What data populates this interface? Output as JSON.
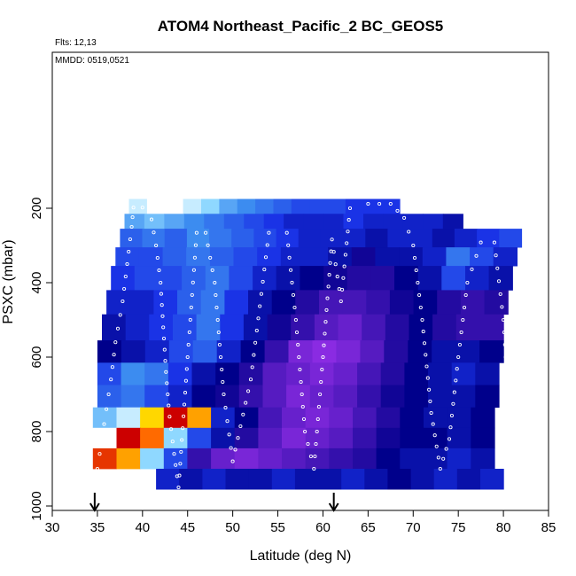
{
  "chart_data": {
    "type": "heatmap",
    "title": "ATOM4 Northeast_Pacific_2 BC_GEOS5",
    "annotations": {
      "flights": "Flts: 12,13",
      "dates": "MMDD: 0519,0521"
    },
    "xlabel": "Latitude (deg N)",
    "ylabel": "PSXC (mbar)",
    "xlim": [
      30,
      85
    ],
    "ylim": [
      1000,
      0
    ],
    "xticks": [
      30,
      35,
      40,
      45,
      50,
      55,
      60,
      65,
      70,
      75,
      80,
      85
    ],
    "yticks": [
      200,
      400,
      600,
      800,
      1000
    ],
    "yaxis_reversed": true,
    "grid": false,
    "colorscale": [
      "#00008b",
      "#1a33e6",
      "#3c8cf0",
      "#8fd8ff",
      "#ffffff",
      "#ffd700",
      "#ff6a00",
      "#cc0000",
      "#8a2be2"
    ],
    "arrows_at_latitude": [
      34.7,
      61.2
    ],
    "layers": [
      {
        "p_top": 175,
        "p_bot": 215,
        "lat_start": 38.5,
        "lat_end": 68.5,
        "values": [
          0.55,
          0.6,
          0.6,
          0.55,
          0.5,
          0.4,
          0.35,
          0.3,
          0.25,
          0.2,
          0.2,
          0.2,
          0.15,
          0.15,
          0.15
        ]
      },
      {
        "p_top": 215,
        "p_bot": 255,
        "lat_start": 38.0,
        "lat_end": 75.5,
        "values": [
          0.4,
          0.45,
          0.4,
          0.35,
          0.3,
          0.25,
          0.2,
          0.15,
          0.1,
          0.1,
          0.1,
          0.15,
          0.1,
          0.1,
          0.1,
          0.1,
          0.05
        ]
      },
      {
        "p_top": 255,
        "p_bot": 305,
        "lat_start": 37.5,
        "lat_end": 82.0,
        "values": [
          0.25,
          0.3,
          0.25,
          0.35,
          0.3,
          0.25,
          0.2,
          0.15,
          0.1,
          0.1,
          0.1,
          0.05,
          0.1,
          0.1,
          0.05,
          0.1,
          0.15,
          0.2
        ]
      },
      {
        "p_top": 305,
        "p_bot": 355,
        "lat_start": 37.0,
        "lat_end": 81.5,
        "values": [
          0.2,
          0.2,
          0.25,
          0.3,
          0.25,
          0.2,
          0.15,
          0.1,
          0.1,
          0.05,
          -0.05,
          0.05,
          0.05,
          0.1,
          0.3,
          0.2,
          0.1
        ]
      },
      {
        "p_top": 355,
        "p_bot": 420,
        "lat_start": 36.5,
        "lat_end": 81.0,
        "values": [
          0.15,
          0.2,
          0.2,
          0.25,
          0.3,
          0.2,
          0.1,
          0.05,
          0.0,
          -0.05,
          -0.1,
          -0.1,
          0.0,
          0.05,
          0.2,
          0.1,
          0.05
        ]
      },
      {
        "p_top": 420,
        "p_bot": 485,
        "lat_start": 36.0,
        "lat_end": 80.5,
        "values": [
          0.1,
          0.1,
          0.15,
          0.25,
          0.3,
          0.15,
          0.05,
          0.0,
          -0.1,
          -0.2,
          -0.2,
          -0.15,
          -0.05,
          0.0,
          -0.1,
          -0.15,
          -0.1
        ]
      },
      {
        "p_top": 485,
        "p_bot": 555,
        "lat_start": 35.5,
        "lat_end": 80.0,
        "values": [
          0.05,
          0.1,
          0.15,
          0.2,
          0.3,
          0.15,
          0.05,
          -0.05,
          -0.15,
          -0.25,
          -0.3,
          -0.2,
          -0.1,
          0.0,
          -0.1,
          -0.15,
          -0.15
        ]
      },
      {
        "p_top": 555,
        "p_bot": 615,
        "lat_start": 35.0,
        "lat_end": 80.0,
        "values": [
          0.0,
          0.05,
          0.1,
          0.2,
          0.25,
          0.1,
          0.0,
          -0.15,
          -0.35,
          -0.4,
          -0.35,
          -0.25,
          -0.1,
          0.0,
          0.05,
          0.05,
          0.0
        ]
      },
      {
        "p_top": 615,
        "p_bot": 675,
        "lat_start": 35.0,
        "lat_end": 79.5,
        "values": [
          0.2,
          0.35,
          0.3,
          0.15,
          0.05,
          0.0,
          -0.1,
          -0.25,
          -0.3,
          -0.35,
          -0.3,
          -0.2,
          -0.1,
          0.0,
          0.05,
          0.1,
          0.05
        ]
      },
      {
        "p_top": 675,
        "p_bot": 735,
        "lat_start": 35.0,
        "lat_end": 79.5,
        "values": [
          0.25,
          0.3,
          0.2,
          0.1,
          0.0,
          -0.05,
          -0.15,
          -0.25,
          -0.35,
          -0.3,
          -0.25,
          -0.15,
          -0.05,
          0.0,
          0.05,
          0.05,
          0.0
        ]
      },
      {
        "p_top": 735,
        "p_bot": 790,
        "lat_start": 34.5,
        "lat_end": 79.0,
        "values": [
          0.45,
          0.55,
          0.7,
          0.9,
          0.75,
          0.1,
          0.0,
          -0.2,
          -0.3,
          -0.35,
          -0.3,
          -0.2,
          -0.1,
          0.0,
          0.05,
          0.05,
          0.0
        ]
      },
      {
        "p_top": 790,
        "p_bot": 845,
        "lat_start": 34.5,
        "lat_end": 79.0,
        "values": [
          0.6,
          0.95,
          0.8,
          0.5,
          0.2,
          0.05,
          -0.1,
          -0.25,
          -0.35,
          -0.3,
          -0.25,
          -0.15,
          -0.05,
          0.0,
          0.0,
          0.05,
          0.0
        ]
      },
      {
        "p_top": 845,
        "p_bot": 900,
        "lat_start": 34.5,
        "lat_end": 79.0,
        "values": [
          0.85,
          0.75,
          0.5,
          0.2,
          -0.15,
          -0.3,
          -0.35,
          -0.3,
          -0.25,
          -0.2,
          -0.15,
          -0.1,
          0.0,
          0.05,
          0.05,
          0.1,
          0.05
        ]
      },
      {
        "p_top": 900,
        "p_bot": 955,
        "lat_start": 41.5,
        "lat_end": 80.0,
        "values": [
          0.1,
          0.05,
          0.1,
          0.05,
          0.05,
          0.1,
          0.05,
          0.05,
          0.1,
          0.05,
          0.0,
          0.05,
          0.1,
          0.05,
          0.1
        ]
      }
    ],
    "flight_track": [
      {
        "lat": 34.7,
        "p": 990
      },
      {
        "lat": 35.0,
        "p": 900
      },
      {
        "lat": 35.5,
        "p": 820
      },
      {
        "lat": 36.0,
        "p": 740
      },
      {
        "lat": 36.5,
        "p": 660
      },
      {
        "lat": 37.0,
        "p": 560
      },
      {
        "lat": 37.8,
        "p": 450
      },
      {
        "lat": 38.3,
        "p": 350
      },
      {
        "lat": 38.8,
        "p": 250
      },
      {
        "lat": 39.0,
        "p": 198
      },
      {
        "lat": 40.0,
        "p": 198
      },
      {
        "lat": 41.0,
        "p": 230
      },
      {
        "lat": 41.5,
        "p": 300
      },
      {
        "lat": 42.0,
        "p": 400
      },
      {
        "lat": 42.3,
        "p": 520
      },
      {
        "lat": 42.6,
        "p": 640
      },
      {
        "lat": 43.0,
        "p": 760
      },
      {
        "lat": 43.5,
        "p": 860
      },
      {
        "lat": 44.0,
        "p": 950
      },
      {
        "lat": 45.0,
        "p": 600
      },
      {
        "lat": 46.0,
        "p": 266
      },
      {
        "lat": 47.0,
        "p": 266
      },
      {
        "lat": 48.0,
        "p": 400
      },
      {
        "lat": 49.0,
        "p": 700
      },
      {
        "lat": 50.0,
        "p": 880
      },
      {
        "lat": 52.0,
        "p": 660
      },
      {
        "lat": 54.0,
        "p": 266
      },
      {
        "lat": 56.0,
        "p": 266
      },
      {
        "lat": 57.0,
        "p": 500
      },
      {
        "lat": 58.0,
        "p": 800
      },
      {
        "lat": 59.0,
        "p": 900
      },
      {
        "lat": 60.0,
        "p": 600
      },
      {
        "lat": 61.0,
        "p": 284
      },
      {
        "lat": 62.0,
        "p": 450
      },
      {
        "lat": 63.0,
        "p": 200
      },
      {
        "lat": 65.0,
        "p": 188
      },
      {
        "lat": 67.5,
        "p": 188
      },
      {
        "lat": 69.0,
        "p": 226
      },
      {
        "lat": 70.0,
        "p": 300
      },
      {
        "lat": 71.0,
        "p": 500
      },
      {
        "lat": 72.0,
        "p": 750
      },
      {
        "lat": 73.0,
        "p": 900
      },
      {
        "lat": 74.0,
        "p": 820
      },
      {
        "lat": 75.0,
        "p": 600
      },
      {
        "lat": 76.0,
        "p": 400
      },
      {
        "lat": 77.5,
        "p": 292
      },
      {
        "lat": 79.0,
        "p": 292
      },
      {
        "lat": 80.0,
        "p": 500
      },
      {
        "lat": 80.5,
        "p": 700
      }
    ]
  }
}
